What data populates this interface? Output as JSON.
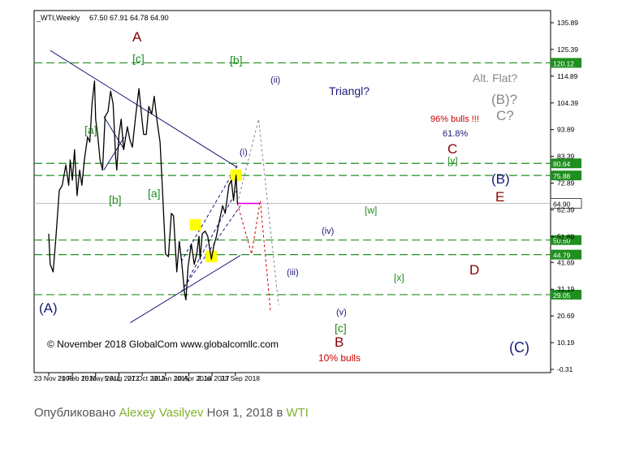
{
  "header": {
    "symbol": "_WTI,Weekly",
    "ohlc": "67.50 67.91 64.78 64.90"
  },
  "colors": {
    "price_line": "#000000",
    "level_lines": "#1f8f1f",
    "trend_lines": "#1a1a7a",
    "current_price_line": "#c0c0c0",
    "yellow_marker": "#ffff00",
    "scenario_red": "#cc0000",
    "scenario_gray": "#888888",
    "magenta": "#dd00dd",
    "green_label": "#1f8f1f",
    "navy_label": "#1a1a7a",
    "maroon_label": "#8b0000",
    "footer_highlight": "#7fb02b"
  },
  "chart_data": {
    "type": "line",
    "title": "_WTI,Weekly",
    "xlabel": "",
    "ylabel": "",
    "x_ticks": [
      "23 Nov 2008",
      "21 Feb 2010",
      "15 May 2011",
      "5 Aug 2012",
      "27 Oct 2013",
      "18 Jan 2015",
      "10 Apr 2016",
      "2 Jul 2017",
      "23 Sep 2018"
    ],
    "y_ticks": [
      "135.89",
      "125.39",
      "114.89",
      "104.39",
      "93.89",
      "83.39",
      "72.89",
      "62.39",
      "51.89",
      "41.69",
      "31.19",
      "20.69",
      "10.19",
      "-0.31"
    ],
    "ylim": [
      -0.31,
      135.89
    ],
    "grid": false,
    "series": [
      {
        "name": "",
        "values": [
          [
            "2008-11-23",
            53
          ],
          [
            "2008-12-21",
            41
          ],
          [
            "2009-02-15",
            38
          ],
          [
            "2009-04-05",
            50
          ],
          [
            "2009-06-14",
            70
          ],
          [
            "2009-08-09",
            72
          ],
          [
            "2009-10-18",
            80
          ],
          [
            "2009-12-13",
            72
          ],
          [
            "2010-01-10",
            82
          ],
          [
            "2010-02-21",
            74
          ],
          [
            "2010-04-04",
            86
          ],
          [
            "2010-05-23",
            68
          ],
          [
            "2010-07-11",
            78
          ],
          [
            "2010-08-22",
            72
          ],
          [
            "2010-10-10",
            82
          ],
          [
            "2010-12-12",
            91
          ],
          [
            "2011-01-23",
            89
          ],
          [
            "2011-03-06",
            104
          ],
          [
            "2011-04-24",
            113
          ],
          [
            "2011-05-15",
            98
          ],
          [
            "2011-06-26",
            91
          ],
          [
            "2011-08-07",
            82
          ],
          [
            "2011-09-25",
            78
          ],
          [
            "2011-11-13",
            99
          ],
          [
            "2012-01-08",
            101
          ],
          [
            "2012-02-26",
            109
          ],
          [
            "2012-04-15",
            104
          ],
          [
            "2012-06-03",
            83
          ],
          [
            "2012-06-24",
            78
          ],
          [
            "2012-08-05",
            92
          ],
          [
            "2012-09-16",
            98
          ],
          [
            "2012-11-04",
            86
          ],
          [
            "2013-01-13",
            95
          ],
          [
            "2013-03-03",
            90
          ],
          [
            "2013-04-21",
            87
          ],
          [
            "2013-06-16",
            98
          ],
          [
            "2013-08-25",
            110
          ],
          [
            "2013-10-27",
            97
          ],
          [
            "2013-11-24",
            92
          ],
          [
            "2014-01-12",
            92
          ],
          [
            "2014-03-02",
            103
          ],
          [
            "2014-04-27",
            100
          ],
          [
            "2014-06-15",
            107
          ],
          [
            "2014-08-10",
            97
          ],
          [
            "2014-10-05",
            89
          ],
          [
            "2014-11-30",
            66
          ],
          [
            "2015-01-18",
            45
          ],
          [
            "2015-03-15",
            44
          ],
          [
            "2015-05-10",
            61
          ],
          [
            "2015-06-21",
            60
          ],
          [
            "2015-08-23",
            38
          ],
          [
            "2015-10-11",
            50
          ],
          [
            "2015-11-29",
            41
          ],
          [
            "2016-01-17",
            30
          ],
          [
            "2016-02-14",
            27
          ],
          [
            "2016-03-27",
            40
          ],
          [
            "2016-05-29",
            49
          ],
          [
            "2016-07-24",
            41
          ],
          [
            "2016-09-11",
            45
          ],
          [
            "2016-10-23",
            52
          ],
          [
            "2016-11-13",
            43
          ],
          [
            "2016-12-25",
            53
          ],
          [
            "2017-02-19",
            54
          ],
          [
            "2017-04-09",
            52
          ],
          [
            "2017-06-18",
            43
          ],
          [
            "2017-08-13",
            49
          ],
          [
            "2017-09-24",
            52
          ],
          [
            "2017-11-19",
            58
          ],
          [
            "2018-01-21",
            64
          ],
          [
            "2018-03-11",
            61
          ],
          [
            "2018-05-20",
            72
          ],
          [
            "2018-07-08",
            74
          ],
          [
            "2018-08-19",
            66
          ],
          [
            "2018-10-07",
            76
          ],
          [
            "2018-10-28",
            67
          ],
          [
            "2018-11-01",
            64.9
          ]
        ]
      }
    ],
    "horizontal_levels": [
      "120.12",
      "80.64",
      "75.88",
      "64.90",
      "50.50",
      "44.79",
      "29.05"
    ],
    "wave_labels": [
      {
        "text": "A",
        "color": "maroon"
      },
      {
        "text": "[c]",
        "color": "green"
      },
      {
        "text": "[b]",
        "color": "green"
      },
      {
        "text": "(ii)",
        "color": "navy"
      },
      {
        "text": "Triangl?",
        "color": "navy"
      },
      {
        "text": "Alt. Flat?",
        "color": "gray"
      },
      {
        "text": "(B)?",
        "color": "gray"
      },
      {
        "text": "C?",
        "color": "gray"
      },
      {
        "text": "96% bulls !!!",
        "color": "red"
      },
      {
        "text": "61.8%",
        "color": "navy"
      },
      {
        "text": "C",
        "color": "maroon"
      },
      {
        "text": "[y]",
        "color": "green"
      },
      {
        "text": "(B)",
        "color": "navy"
      },
      {
        "text": "E",
        "color": "maroon"
      },
      {
        "text": "[a]",
        "color": "green"
      },
      {
        "text": "[b]",
        "color": "green"
      },
      {
        "text": "[a]",
        "color": "green"
      },
      {
        "text": "(i)",
        "color": "navy"
      },
      {
        "text": "[w]",
        "color": "green"
      },
      {
        "text": "(iv)",
        "color": "navy"
      },
      {
        "text": "(iii)",
        "color": "navy"
      },
      {
        "text": "[x]",
        "color": "green"
      },
      {
        "text": "D",
        "color": "maroon"
      },
      {
        "text": "(v)",
        "color": "navy"
      },
      {
        "text": "[c]",
        "color": "green"
      },
      {
        "text": "B",
        "color": "maroon"
      },
      {
        "text": "10% bulls",
        "color": "red"
      },
      {
        "text": "(A)",
        "color": "navy"
      },
      {
        "text": "(C)",
        "color": "navy"
      }
    ],
    "copyright": "© November 2018 GlobalCom www.globalcomllc.com"
  },
  "footer": {
    "prefix": "Опубликовано",
    "author": "Alexey Vasilyev",
    "date_mid": "Ноя 1, 2018 в",
    "symbol": "WTI"
  }
}
